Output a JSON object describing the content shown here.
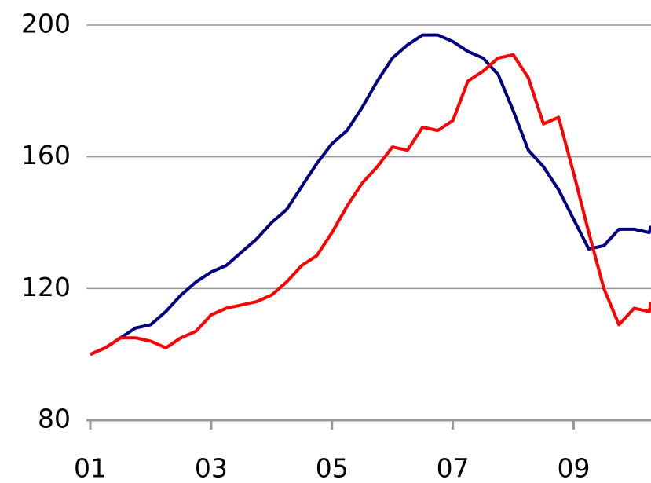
{
  "chart_data": {
    "type": "line",
    "x": [
      2001,
      2001.25,
      2001.5,
      2001.75,
      2002,
      2002.25,
      2002.5,
      2002.75,
      2003,
      2003.25,
      2003.5,
      2003.75,
      2004,
      2004.25,
      2004.5,
      2004.75,
      2005,
      2005.25,
      2005.5,
      2005.75,
      2006,
      2006.25,
      2006.5,
      2006.75,
      2007,
      2007.25,
      2007.5,
      2007.75,
      2008,
      2008.25,
      2008.5,
      2008.75,
      2009,
      2009.25,
      2009.5,
      2009.75,
      2010,
      2010.25,
      2010.28
    ],
    "series": [
      {
        "color": "#000080",
        "values": [
          100,
          102,
          105,
          108,
          109,
          113,
          118,
          122,
          125,
          127,
          131,
          135,
          140,
          144,
          151,
          158,
          164,
          168,
          175,
          183,
          190,
          194,
          197,
          197,
          195,
          192,
          190,
          185,
          174,
          162,
          157,
          150,
          141,
          132,
          133,
          138,
          138,
          137,
          139
        ]
      },
      {
        "color": "#ff0000",
        "values": [
          100,
          102,
          105,
          105,
          104,
          102,
          105,
          107,
          112,
          114,
          115,
          116,
          118,
          122,
          127,
          130,
          137,
          145,
          152,
          157,
          163,
          162,
          169,
          168,
          171,
          183,
          186,
          190,
          191,
          184,
          170,
          172,
          155,
          137,
          120,
          109,
          114,
          113,
          116
        ]
      }
    ],
    "xlim": [
      2001,
      2010.28
    ],
    "ylim": [
      80,
      200
    ],
    "xticks": [
      {
        "value": 2001,
        "label": "01"
      },
      {
        "value": 2003,
        "label": "03"
      },
      {
        "value": 2005,
        "label": "05"
      },
      {
        "value": 2007,
        "label": "07"
      },
      {
        "value": 2009,
        "label": "09"
      }
    ],
    "yticks": [
      80,
      120,
      160,
      200
    ],
    "grid": true
  }
}
